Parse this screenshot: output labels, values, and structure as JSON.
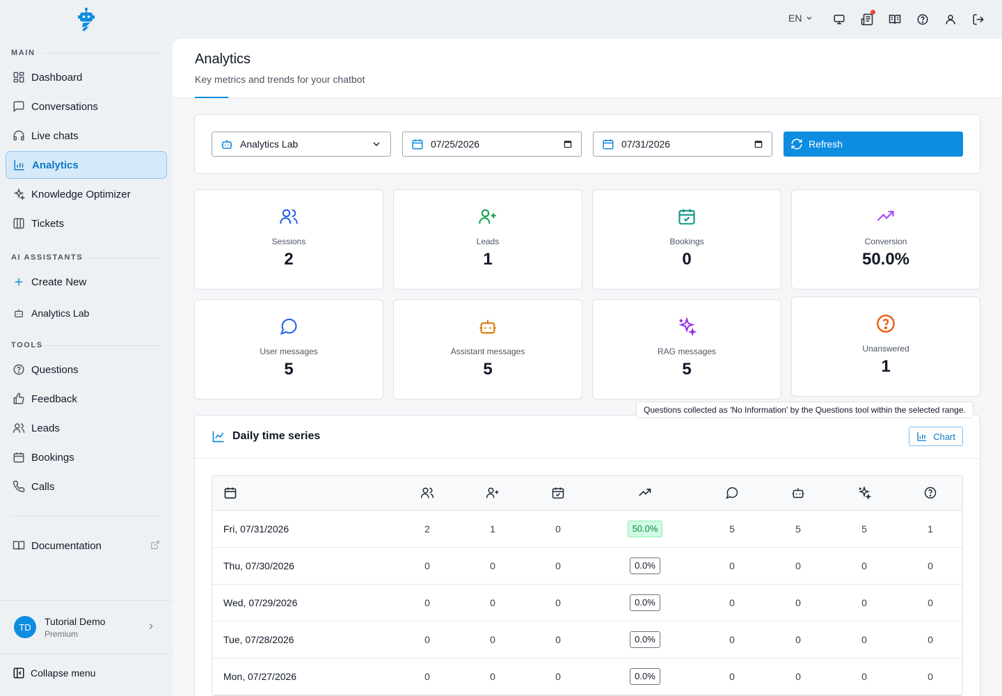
{
  "app": {
    "sections": {
      "main": "MAIN",
      "ai": "AI ASSISTANTS",
      "tools": "TOOLS"
    }
  },
  "sidebar": {
    "main_items": [
      {
        "label": "Dashboard",
        "icon": "dashboard-icon"
      },
      {
        "label": "Conversations",
        "icon": "message-square-icon"
      },
      {
        "label": "Live chats",
        "icon": "headset-icon"
      },
      {
        "label": "Analytics",
        "icon": "bar-chart-icon",
        "active": true
      },
      {
        "label": "Knowledge Optimizer",
        "icon": "sparkles-icon"
      },
      {
        "label": "Tickets",
        "icon": "columns-icon"
      }
    ],
    "ai_items": [
      {
        "label": "Create New",
        "icon": "plus-icon"
      },
      {
        "label": "Analytics Lab",
        "icon": "bot-icon"
      }
    ],
    "tools_items": [
      {
        "label": "Questions",
        "icon": "help-circle-icon"
      },
      {
        "label": "Feedback",
        "icon": "thumbs-up-icon"
      },
      {
        "label": "Leads",
        "icon": "users-icon"
      },
      {
        "label": "Bookings",
        "icon": "calendar-icon"
      },
      {
        "label": "Calls",
        "icon": "phone-icon"
      }
    ],
    "documentation": "Documentation",
    "user": {
      "initials": "TD",
      "name": "Tutorial Demo",
      "plan": "Premium"
    },
    "collapse": "Collapse menu"
  },
  "topbar": {
    "language": "EN"
  },
  "header": {
    "title": "Analytics",
    "subtitle": "Key metrics and trends for your chatbot"
  },
  "filters": {
    "assistant": "Analytics Lab",
    "start_date": "07/25/2026",
    "end_date": "07/31/2026",
    "refresh": "Refresh"
  },
  "metrics": [
    {
      "label": "Sessions",
      "value": "2",
      "icon": "users-icon",
      "color": "#2563eb"
    },
    {
      "label": "Leads",
      "value": "1",
      "icon": "user-plus-icon",
      "color": "#16a34a"
    },
    {
      "label": "Bookings",
      "value": "0",
      "icon": "calendar-check-icon",
      "color": "#0d9488"
    },
    {
      "label": "Conversion",
      "value": "50.0%",
      "icon": "trending-up-icon",
      "color": "#a855f7"
    },
    {
      "label": "User messages",
      "value": "5",
      "icon": "message-circle-icon",
      "color": "#2563eb"
    },
    {
      "label": "Assistant messages",
      "value": "5",
      "icon": "bot-icon",
      "color": "#d97706"
    },
    {
      "label": "RAG messages",
      "value": "5",
      "icon": "sparkles-icon",
      "color": "#9333ea"
    },
    {
      "label": "Unanswered",
      "value": "1",
      "icon": "help-circle-icon",
      "color": "#ea580c"
    }
  ],
  "tooltip": "Questions collected as 'No Information' by the Questions tool within the selected range.",
  "timeseries": {
    "title": "Daily time series",
    "chart_button": "Chart",
    "rows": [
      {
        "date": "Fri, 07/31/2026",
        "sessions": "2",
        "leads": "1",
        "bookings": "0",
        "conversion": "50.0%",
        "user": "5",
        "assistant": "5",
        "rag": "5",
        "unanswered": "1"
      },
      {
        "date": "Thu, 07/30/2026",
        "sessions": "0",
        "leads": "0",
        "bookings": "0",
        "conversion": "0.0%",
        "user": "0",
        "assistant": "0",
        "rag": "0",
        "unanswered": "0"
      },
      {
        "date": "Wed, 07/29/2026",
        "sessions": "0",
        "leads": "0",
        "bookings": "0",
        "conversion": "0.0%",
        "user": "0",
        "assistant": "0",
        "rag": "0",
        "unanswered": "0"
      },
      {
        "date": "Tue, 07/28/2026",
        "sessions": "0",
        "leads": "0",
        "bookings": "0",
        "conversion": "0.0%",
        "user": "0",
        "assistant": "0",
        "rag": "0",
        "unanswered": "0"
      },
      {
        "date": "Mon, 07/27/2026",
        "sessions": "0",
        "leads": "0",
        "bookings": "0",
        "conversion": "0.0%",
        "user": "0",
        "assistant": "0",
        "rag": "0",
        "unanswered": "0"
      }
    ]
  }
}
